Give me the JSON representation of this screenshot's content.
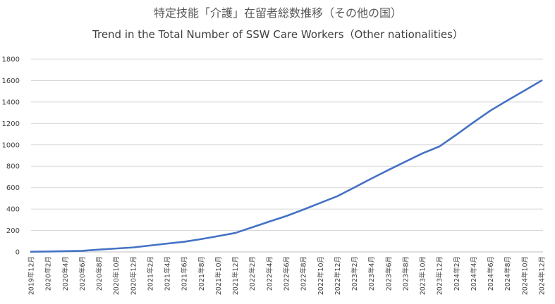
{
  "chart_data": {
    "type": "line",
    "title": "特定技能「介護」在留者総数推移（その他の国）",
    "subtitle": "Trend in the Total Number of SSW Care Workers（Other nationalities）",
    "xlabel": "",
    "ylabel": "",
    "ylim": [
      0,
      1800
    ],
    "yticks": [
      0,
      200,
      400,
      600,
      800,
      1000,
      1200,
      1400,
      1600,
      1800
    ],
    "grid": true,
    "legend": "none",
    "color": "#4472c4",
    "categories": [
      "2019年12月",
      "2020年2月",
      "2020年4月",
      "2020年6月",
      "2020年8月",
      "2020年10月",
      "2020年12月",
      "2021年2月",
      "2021年4月",
      "2021年6月",
      "2021年8月",
      "2021年10月",
      "2021年12月",
      "2022年2月",
      "2022年4月",
      "2022年6月",
      "2022年8月",
      "2022年10月",
      "2022年12月",
      "2023年2月",
      "2023年4月",
      "2023年6月",
      "2023年8月",
      "2023年10月",
      "2023年12月",
      "2024年2月",
      "2024年4月",
      "2024年6月",
      "2024年8月",
      "2024年10月",
      "2024年12月"
    ],
    "series": [
      {
        "values": [
          2,
          4,
          7,
          10,
          22,
          32,
          42,
          60,
          78,
          95,
          120,
          148,
          177,
          230,
          283,
          335,
          395,
          458,
          520,
          602,
          685,
          765,
          843,
          920,
          985,
          1095,
          1210,
          1320,
          1415,
          1507,
          1600
        ]
      }
    ]
  }
}
